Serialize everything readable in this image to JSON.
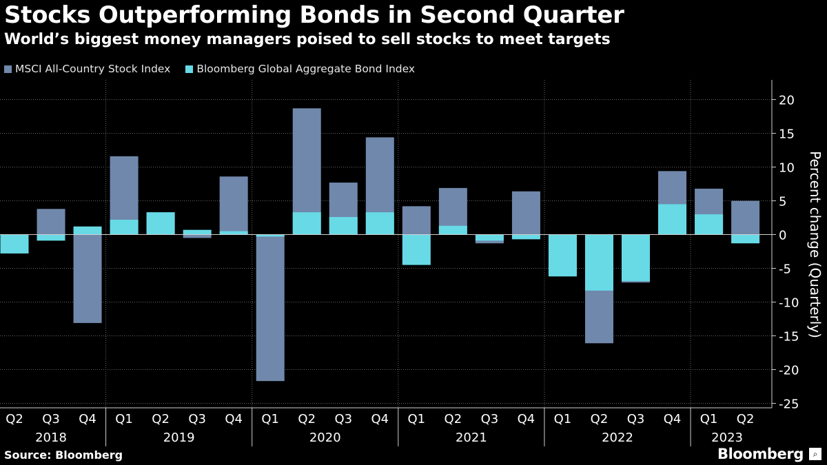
{
  "header": {
    "title": "Stocks Outperforming Bonds in Second Quarter",
    "subtitle": "World’s biggest money managers poised to sell stocks to meet targets"
  },
  "footer": {
    "source": "Source: Bloomberg",
    "brand": "Bloomberg"
  },
  "chart_data": {
    "type": "bar",
    "stacked": true,
    "categories": [
      "Q2",
      "Q3",
      "Q4",
      "Q1",
      "Q2",
      "Q3",
      "Q4",
      "Q1",
      "Q2",
      "Q3",
      "Q4",
      "Q1",
      "Q2",
      "Q3",
      "Q4",
      "Q1",
      "Q2",
      "Q3",
      "Q4",
      "Q1",
      "Q2"
    ],
    "year_groups": [
      {
        "label": "2018",
        "start": 0,
        "end": 2
      },
      {
        "label": "2019",
        "start": 3,
        "end": 6
      },
      {
        "label": "2020",
        "start": 7,
        "end": 10
      },
      {
        "label": "2021",
        "start": 11,
        "end": 14
      },
      {
        "label": "2022",
        "start": 15,
        "end": 18
      },
      {
        "label": "2023",
        "start": 19,
        "end": 20
      }
    ],
    "series": [
      {
        "name": "MSCI All-Country Stock Index",
        "color": "#7088ab",
        "values": [
          -0.2,
          3.8,
          -13.1,
          11.6,
          3.3,
          -0.5,
          8.6,
          -21.7,
          18.7,
          7.7,
          14.4,
          4.2,
          6.9,
          -1.3,
          6.4,
          -5.7,
          -16.1,
          -7.1,
          9.4,
          6.8,
          5.0
        ]
      },
      {
        "name": "Bloomberg Global Aggregate Bond Index",
        "color": "#67dae6",
        "values": [
          -2.8,
          -0.9,
          1.2,
          2.2,
          3.3,
          0.7,
          0.5,
          -0.3,
          3.3,
          2.6,
          3.3,
          -4.5,
          1.3,
          -0.9,
          -0.7,
          -6.2,
          -8.3,
          -6.9,
          4.5,
          3.0,
          -1.3
        ]
      }
    ],
    "ylabel": "Percent change (Quarterly)",
    "ylim": [
      -25,
      22
    ],
    "yticks": [
      20,
      15,
      10,
      5,
      0,
      -5,
      -10,
      -15,
      -20,
      -25
    ],
    "grid": true,
    "legend_position": "top-left"
  }
}
